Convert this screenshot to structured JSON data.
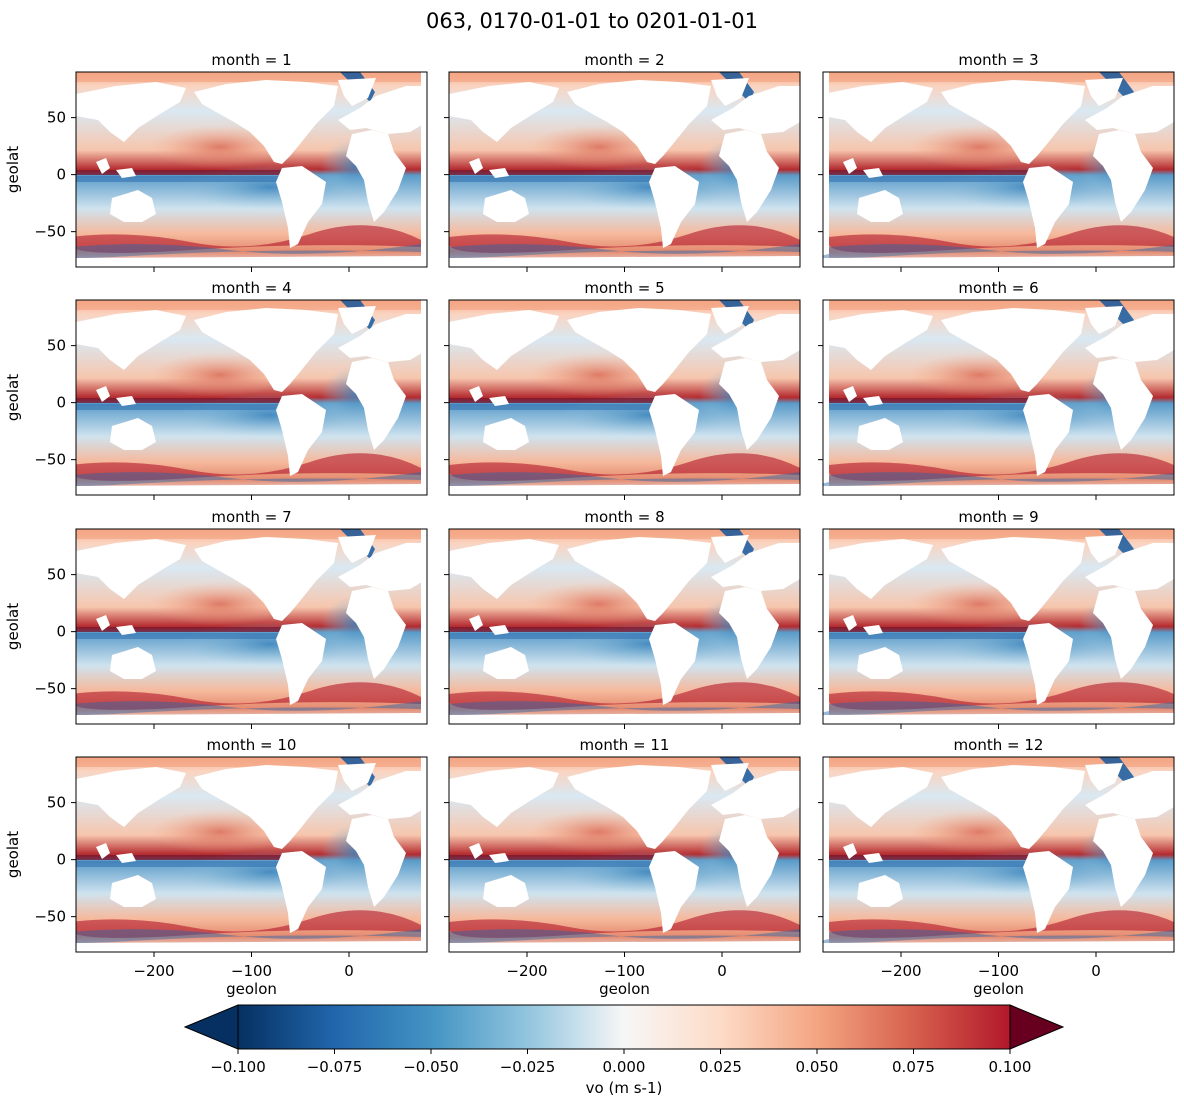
{
  "figure": {
    "title": "063, 0170-01-01 to 0201-01-01"
  },
  "chart_data": {
    "type": "heatmap",
    "variable_label": "vo (m s-1)",
    "colormap": "RdBu_r",
    "panels": [
      {
        "title": "month = 1"
      },
      {
        "title": "month = 2"
      },
      {
        "title": "month = 3"
      },
      {
        "title": "month = 4"
      },
      {
        "title": "month = 5"
      },
      {
        "title": "month = 6"
      },
      {
        "title": "month = 7"
      },
      {
        "title": "month = 8"
      },
      {
        "title": "month = 9"
      },
      {
        "title": "month = 10"
      },
      {
        "title": "month = 11"
      },
      {
        "title": "month = 12"
      }
    ],
    "xlabel": "geolon",
    "ylabel": "geolat",
    "xlim": [
      -280,
      80
    ],
    "ylim": [
      -81,
      90
    ],
    "x_ticks": [
      -200,
      -100,
      0
    ],
    "x_tick_labels": [
      "−200",
      "−100",
      "0"
    ],
    "y_ticks": [
      50,
      0,
      -50
    ],
    "y_tick_labels": [
      "50",
      "0",
      "−50"
    ],
    "colorbar": {
      "range": [
        -0.1,
        0.1
      ],
      "extend": "both",
      "ticks": [
        -0.1,
        -0.075,
        -0.05,
        -0.025,
        0,
        0.025,
        0.05,
        0.075,
        0.1
      ],
      "tick_labels": [
        "−0.100",
        "−0.075",
        "−0.050",
        "−0.025",
        "0.000",
        "0.025",
        "0.050",
        "0.075",
        "0.100"
      ]
    },
    "colors": {
      "negative_extreme": "#053061",
      "neutral": "#f7f7f7",
      "positive_extreme": "#67001f",
      "land": "#ffffff"
    }
  }
}
